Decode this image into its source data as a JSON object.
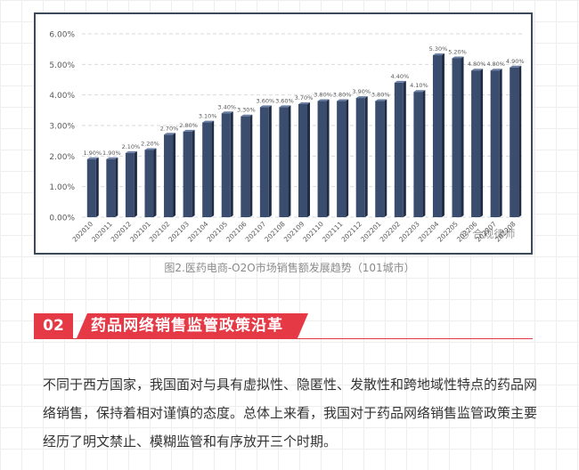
{
  "chart_data": {
    "type": "bar",
    "categories": [
      "202010",
      "202011",
      "202012",
      "202101",
      "202102",
      "202103",
      "202104",
      "202105",
      "202106",
      "202107",
      "202108",
      "202109",
      "202110",
      "202111",
      "202112",
      "202201",
      "202202",
      "202203",
      "202204",
      "202205",
      "202206",
      "202207",
      "202208"
    ],
    "values": [
      1.9,
      1.9,
      2.1,
      2.2,
      2.7,
      2.8,
      3.1,
      3.4,
      3.3,
      3.6,
      3.6,
      3.7,
      3.8,
      3.8,
      3.9,
      3.8,
      4.4,
      4.1,
      5.3,
      5.2,
      4.8,
      4.8,
      4.9
    ],
    "data_labels": [
      "1.90%",
      "1.90%",
      "2.10%",
      "2.20%",
      "2.70%",
      "2.80%",
      "3.10%",
      "3.40%",
      "3.30%",
      "3.60%",
      "3.60%",
      "3.70%",
      "3.80%",
      "3.80%",
      "3.90%",
      "3.80%",
      "4.40%",
      "4.10%",
      "5.30%",
      "5.20%",
      "4.80%",
      "4.80%",
      "4.90%"
    ],
    "yticks": [
      "0.00%",
      "1.00%",
      "2.00%",
      "3.00%",
      "4.00%",
      "5.00%",
      "6.00%"
    ],
    "ylim": [
      0,
      6
    ],
    "grid": true,
    "bar_color": "#3a4d6e",
    "title": "",
    "xlabel": "",
    "ylabel": ""
  },
  "caption": "图2.医药电商-O2O市场销售额发展趋势（101城市）",
  "watermark": "合规律师",
  "section": {
    "number": "02",
    "title": "药品网络销售监管政策沿革",
    "accent": "#e63946"
  },
  "paragraph": "不同于西方国家，我国面对与具有虚拟性、隐匿性、发散性和跨地域性特点的药品网络销售，保持着相对谨慎的态度。总体上来看，我国对于药品网络销售监管政策主要经历了明文禁止、模糊监管和有序放开三个时期。"
}
